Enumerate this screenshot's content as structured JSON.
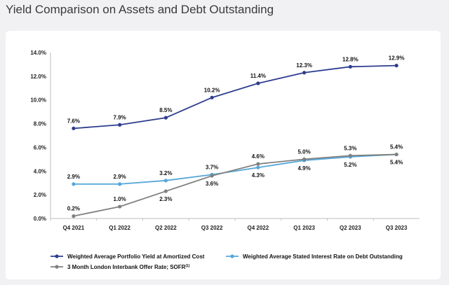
{
  "title": "Yield Comparison on Assets and Debt Outstanding",
  "chart_data": {
    "type": "line",
    "categories": [
      "Q4 2021",
      "Q1 2022",
      "Q2 2022",
      "Q3 2022",
      "Q4 2022",
      "Q1 2023",
      "Q2 2023",
      "Q3 2023"
    ],
    "ylim": [
      0,
      14
    ],
    "yticks": [
      "0.0%",
      "2.0%",
      "4.0%",
      "6.0%",
      "8.0%",
      "10.0%",
      "12.0%",
      "14.0%"
    ],
    "grid": false,
    "legend_placement": "bottom",
    "series": [
      {
        "name": "Weighted Average Portfolio Yield at Amortized Cost",
        "color": "#2e3d8f",
        "values": [
          7.6,
          7.9,
          8.5,
          10.2,
          11.4,
          12.3,
          12.8,
          12.9
        ],
        "labels": [
          "7.6%",
          "7.9%",
          "8.5%",
          "10.2%",
          "11.4%",
          "12.3%",
          "12.8%",
          "12.9%"
        ],
        "label_position": "above"
      },
      {
        "name": "Weighted Average Stated Interest Rate on Debt Outstanding",
        "color": "#55a7d8",
        "values": [
          2.9,
          2.9,
          3.2,
          3.7,
          4.3,
          4.9,
          5.2,
          5.4
        ],
        "labels": [
          "2.9%",
          "2.9%",
          "3.2%",
          "3.7%",
          "4.3%",
          "4.9%",
          "5.2%",
          "5.4%"
        ],
        "label_position": "mixed"
      },
      {
        "name": "3 Month London Interbank Offer Rate; SOFR",
        "name_superscript": "(1)",
        "color": "#808080",
        "values": [
          0.2,
          1.0,
          2.3,
          3.6,
          4.6,
          5.0,
          5.3,
          5.4
        ],
        "labels": [
          "0.2%",
          "1.0%",
          "2.3%",
          "3.6%",
          "4.6%",
          "5.0%",
          "5.3%",
          "5.4%"
        ],
        "label_position": "mixed"
      }
    ]
  }
}
